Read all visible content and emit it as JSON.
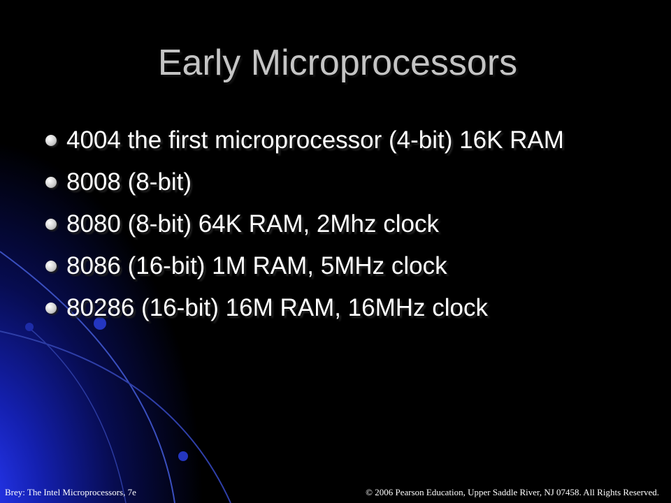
{
  "title": "Early Microprocessors",
  "bullets": [
    "4004 the first microprocessor (4-bit) 16K RAM",
    "8008 (8-bit)",
    "8080 (8-bit) 64K RAM, 2Mhz clock",
    "8086 (16-bit) 1M RAM, 5MHz clock",
    "80286 (16-bit) 16M RAM, 16MHz clock"
  ],
  "footer": {
    "left": "Brey: The Intel Microprocessors, 7e",
    "right": "© 2006 Pearson Education, Upper Saddle River, NJ 07458. All Rights Reserved."
  }
}
